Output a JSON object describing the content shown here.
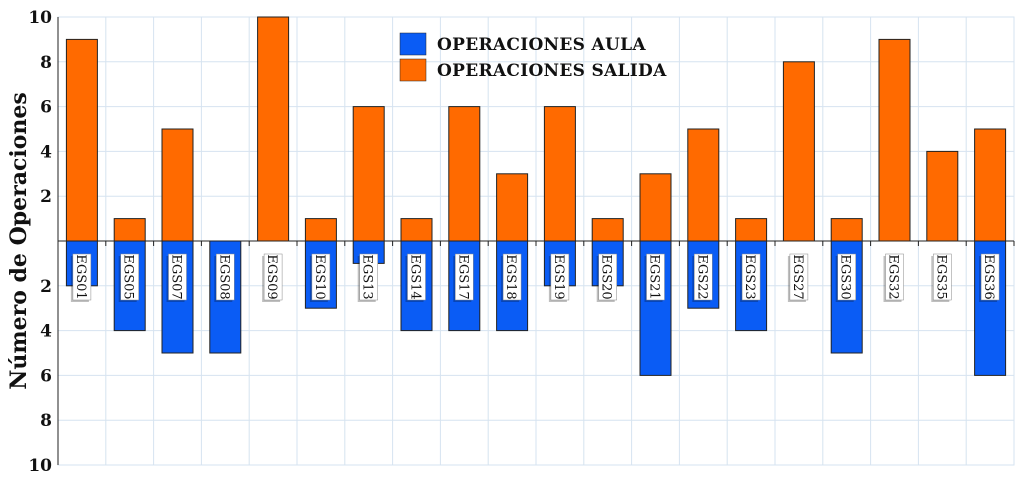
{
  "chart_data": {
    "type": "bar",
    "title": "",
    "ylabel": "Número de Operaciones",
    "xlabel": "",
    "categories": [
      "EGS01",
      "EGS05",
      "EGS07",
      "EGS08",
      "EGS09",
      "EGS10",
      "EGS13",
      "EGS14",
      "EGS17",
      "EGS18",
      "EGS19",
      "EGS20",
      "EGS21",
      "EGS22",
      "EGS23",
      "EGS27",
      "EGS30",
      "EGS32",
      "EGS35",
      "EGS36"
    ],
    "series": [
      {
        "name": "OPERACIONES AULA",
        "color": "#0a5cf5",
        "direction": "down",
        "values": [
          2,
          4,
          5,
          5,
          0,
          3,
          1,
          4,
          4,
          4,
          2,
          2,
          6,
          3,
          4,
          0,
          5,
          0,
          0,
          6
        ]
      },
      {
        "name": "OPERACIONES SALIDA",
        "color": "#ff6a00",
        "direction": "up",
        "values": [
          9,
          1,
          5,
          0,
          10,
          1,
          6,
          1,
          6,
          3,
          6,
          1,
          3,
          5,
          1,
          8,
          1,
          9,
          4,
          5
        ]
      }
    ],
    "ylim": [
      -10,
      10
    ],
    "yticks_up": [
      "2",
      "4",
      "6",
      "8",
      "10"
    ],
    "yticks_down": [
      "2",
      "4",
      "6",
      "8",
      "10"
    ],
    "grid": true,
    "legend_position": "top-center"
  }
}
